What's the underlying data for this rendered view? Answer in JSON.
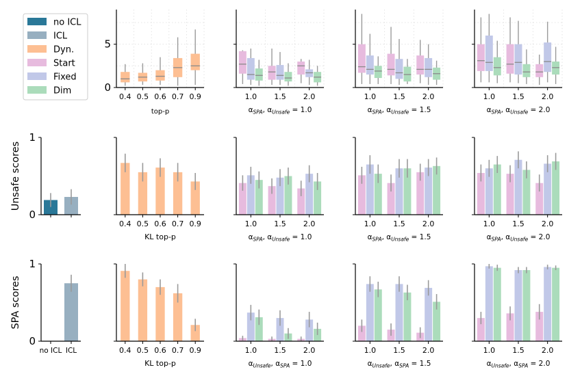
{
  "colors": {
    "noicl": "#2a7898",
    "icl": "#97afc0",
    "dyn": "#fdbf93",
    "start": "#e7bbde",
    "fixed": "#c1c8e8",
    "dim": "#abdcbb",
    "whisker": "#9a9a9a",
    "median": "#8a8a8a",
    "axis": "#000000",
    "grid": "#dddddd"
  },
  "legend": [
    {
      "label": "no ICL",
      "color": "#2a7898"
    },
    {
      "label": "ICL",
      "color": "#97afc0"
    },
    {
      "label": "Dyn.",
      "color": "#fdbf93"
    },
    {
      "label": "Start",
      "color": "#e7bbde"
    },
    {
      "label": "Fixed",
      "color": "#c1c8e8"
    },
    {
      "label": "Dim",
      "color": "#abdcbb"
    }
  ],
  "row_labels": [
    "Unsafe scores",
    "SPA scores"
  ],
  "chart_data": [
    {
      "id": "top-p-box",
      "type": "box",
      "ylim": [
        0,
        9
      ],
      "yticks": [
        "0",
        "5"
      ],
      "ytick_values": [
        0,
        5
      ],
      "xlabel": "top-p",
      "categories": [
        "0.4",
        "0.5",
        "0.6",
        "0.7",
        "0.9"
      ],
      "series": [
        {
          "name": "Dyn.",
          "color": "#fdbf93",
          "boxes": [
            {
              "q1": 0.6,
              "median": 1.0,
              "q3": 1.8,
              "lo": 0.2,
              "hi": 2.7
            },
            {
              "q1": 0.7,
              "median": 1.2,
              "q3": 1.7,
              "lo": 0.3,
              "hi": 2.8
            },
            {
              "q1": 0.8,
              "median": 1.3,
              "q3": 2.0,
              "lo": 0.3,
              "hi": 3.5
            },
            {
              "q1": 1.2,
              "median": 2.3,
              "q3": 3.4,
              "lo": 0.2,
              "hi": 5.8
            },
            {
              "q1": 2.0,
              "median": 2.5,
              "q3": 3.9,
              "lo": 0.3,
              "hi": 6.7
            }
          ]
        }
      ]
    },
    {
      "id": "box-unsafe-1.0",
      "type": "box",
      "ylim": [
        0,
        9
      ],
      "xlabel": "αSPA, αUnsafe = 1.0",
      "categories": [
        "1.0",
        "1.5",
        "2.0"
      ],
      "series": [
        {
          "name": "Start",
          "color": "#e7bbde",
          "boxes": [
            {
              "q1": 1.6,
              "median": 2.7,
              "q3": 4.2,
              "lo": 0.4,
              "hi": 4.3
            },
            {
              "q1": 0.9,
              "median": 1.8,
              "q3": 2.5,
              "lo": 0.3,
              "hi": 4.5
            },
            {
              "q1": 1.5,
              "median": 2.5,
              "q3": 3.0,
              "lo": 0.5,
              "hi": 3.3
            }
          ]
        },
        {
          "name": "Fixed",
          "color": "#c1c8e8",
          "boxes": [
            {
              "q1": 0.9,
              "median": 1.5,
              "q3": 3.4,
              "lo": 0.3,
              "hi": 4.5
            },
            {
              "q1": 0.9,
              "median": 1.4,
              "q3": 2.6,
              "lo": 0.3,
              "hi": 4.1
            },
            {
              "q1": 1.2,
              "median": 1.7,
              "q3": 2.1,
              "lo": 0.3,
              "hi": 3.2
            }
          ]
        },
        {
          "name": "Dim",
          "color": "#abdcbb",
          "boxes": [
            {
              "q1": 0.8,
              "median": 1.4,
              "q3": 2.2,
              "lo": 0.2,
              "hi": 3.2
            },
            {
              "q1": 0.7,
              "median": 1.1,
              "q3": 1.8,
              "lo": 0.2,
              "hi": 2.8
            },
            {
              "q1": 0.6,
              "median": 1.2,
              "q3": 1.8,
              "lo": 0.2,
              "hi": 2.5
            }
          ]
        }
      ]
    },
    {
      "id": "box-unsafe-1.5",
      "type": "box",
      "ylim": [
        0,
        9
      ],
      "xlabel": "αSPA, αUnsafe = 1.5",
      "categories": [
        "1.0",
        "1.5",
        "2.0"
      ],
      "series": [
        {
          "name": "Start",
          "color": "#e7bbde",
          "boxes": [
            {
              "q1": 1.7,
              "median": 2.4,
              "q3": 5.0,
              "lo": 0.4,
              "hi": 8.5
            },
            {
              "q1": 1.4,
              "median": 2.1,
              "q3": 3.9,
              "lo": 0.4,
              "hi": 7.0
            },
            {
              "q1": 1.5,
              "median": 2.1,
              "q3": 3.7,
              "lo": 0.5,
              "hi": 5.5
            }
          ]
        },
        {
          "name": "Fixed",
          "color": "#c1c8e8",
          "boxes": [
            {
              "q1": 1.5,
              "median": 2.1,
              "q3": 3.7,
              "lo": 0.4,
              "hi": 6.2
            },
            {
              "q1": 1.0,
              "median": 1.7,
              "q3": 3.3,
              "lo": 0.3,
              "hi": 5.6
            },
            {
              "q1": 1.2,
              "median": 2.1,
              "q3": 3.4,
              "lo": 0.3,
              "hi": 5.0
            }
          ]
        },
        {
          "name": "Dim",
          "color": "#abdcbb",
          "boxes": [
            {
              "q1": 1.1,
              "median": 1.9,
              "q3": 2.5,
              "lo": 0.4,
              "hi": 3.6
            },
            {
              "q1": 0.7,
              "median": 1.5,
              "q3": 2.4,
              "lo": 0.4,
              "hi": 3.3
            },
            {
              "q1": 0.9,
              "median": 1.6,
              "q3": 2.3,
              "lo": 0.3,
              "hi": 3.1
            }
          ]
        }
      ]
    },
    {
      "id": "box-unsafe-2.0",
      "type": "box",
      "ylim": [
        0,
        9
      ],
      "xlabel": "αSPA, αUnsafe = 2.0",
      "categories": [
        "1.0",
        "1.5",
        "2.0"
      ],
      "series": [
        {
          "name": "Start",
          "color": "#e7bbde",
          "boxes": [
            {
              "q1": 1.9,
              "median": 3.1,
              "q3": 5.0,
              "lo": 0.6,
              "hi": 8.1
            },
            {
              "q1": 1.6,
              "median": 2.7,
              "q3": 5.0,
              "lo": 0.6,
              "hi": 8.1
            },
            {
              "q1": 1.2,
              "median": 1.8,
              "q3": 2.7,
              "lo": 0.3,
              "hi": 3.8
            }
          ]
        },
        {
          "name": "Fixed",
          "color": "#c1c8e8",
          "boxes": [
            {
              "q1": 1.9,
              "median": 2.9,
              "q3": 6.0,
              "lo": 0.6,
              "hi": 8.5
            },
            {
              "q1": 1.5,
              "median": 2.9,
              "q3": 5.0,
              "lo": 0.5,
              "hi": 7.7
            },
            {
              "q1": 1.8,
              "median": 3.0,
              "q3": 5.2,
              "lo": 0.6,
              "hi": 7.6
            }
          ]
        },
        {
          "name": "Dim",
          "color": "#abdcbb",
          "boxes": [
            {
              "q1": 1.4,
              "median": 2.3,
              "q3": 3.5,
              "lo": 0.5,
              "hi": 5.4
            },
            {
              "q1": 1.2,
              "median": 1.8,
              "q3": 2.7,
              "lo": 0.4,
              "hi": 4.4
            },
            {
              "q1": 1.5,
              "median": 2.3,
              "q3": 3.0,
              "lo": 0.4,
              "hi": 4.7
            }
          ]
        }
      ]
    },
    {
      "id": "unsafe-icl",
      "type": "bar",
      "ylim": [
        0,
        1
      ],
      "yticks": [
        "0",
        "1"
      ],
      "ytick_values": [
        0,
        1
      ],
      "categories": [
        "",
        ""
      ],
      "series": [
        {
          "name": "no ICL",
          "color": "#2a7898",
          "values": [
            0.19,
            null
          ],
          "err": [
            0.09,
            null
          ]
        },
        {
          "name": "ICL",
          "color": "#97afc0",
          "values": [
            null,
            0.23
          ],
          "err": [
            null,
            0.1
          ]
        }
      ]
    },
    {
      "id": "unsafe-kl-top-p",
      "type": "bar",
      "ylim": [
        0,
        1
      ],
      "xlabel": "KL top-p",
      "categories": [
        "0.4",
        "0.5",
        "0.6",
        "0.7",
        "0.9"
      ],
      "series": [
        {
          "name": "Dyn.",
          "color": "#fdbf93",
          "values": [
            0.67,
            0.55,
            0.61,
            0.55,
            0.43
          ],
          "err": [
            0.12,
            0.12,
            0.12,
            0.12,
            0.11
          ]
        }
      ]
    },
    {
      "id": "unsafe-1.0",
      "type": "bar",
      "ylim": [
        0,
        1
      ],
      "xlabel": "αSPA, αUnsafe = 1.0",
      "categories": [
        "1.0",
        "1.5",
        "2.0"
      ],
      "series": [
        {
          "name": "Start",
          "color": "#e7bbde",
          "values": [
            0.41,
            0.37,
            0.34
          ],
          "err": [
            0.1,
            0.1,
            0.1
          ]
        },
        {
          "name": "Fixed",
          "color": "#c1c8e8",
          "values": [
            0.51,
            0.48,
            0.53
          ],
          "err": [
            0.11,
            0.11,
            0.11
          ]
        },
        {
          "name": "Dim",
          "color": "#abdcbb",
          "values": [
            0.45,
            0.5,
            0.43
          ],
          "err": [
            0.11,
            0.11,
            0.11
          ]
        }
      ]
    },
    {
      "id": "unsafe-1.5",
      "type": "bar",
      "ylim": [
        0,
        1
      ],
      "xlabel": "αSPA, αUnsafe = 1.5",
      "categories": [
        "1.0",
        "1.5",
        "2.0"
      ],
      "series": [
        {
          "name": "Start",
          "color": "#e7bbde",
          "values": [
            0.51,
            0.41,
            0.55
          ],
          "err": [
            0.11,
            0.11,
            0.11
          ]
        },
        {
          "name": "Fixed",
          "color": "#c1c8e8",
          "values": [
            0.65,
            0.6,
            0.61
          ],
          "err": [
            0.12,
            0.12,
            0.11
          ]
        },
        {
          "name": "Dim",
          "color": "#abdcbb",
          "values": [
            0.53,
            0.6,
            0.63
          ],
          "err": [
            0.12,
            0.12,
            0.11
          ]
        }
      ]
    },
    {
      "id": "unsafe-2.0",
      "type": "bar",
      "ylim": [
        0,
        1
      ],
      "xlabel": "αSPA, αUnsafe = 2.0",
      "categories": [
        "1.0",
        "1.5",
        "2.0"
      ],
      "series": [
        {
          "name": "Start",
          "color": "#e7bbde",
          "values": [
            0.54,
            0.53,
            0.41
          ],
          "err": [
            0.11,
            0.11,
            0.11
          ]
        },
        {
          "name": "Fixed",
          "color": "#c1c8e8",
          "values": [
            0.6,
            0.71,
            0.66
          ],
          "err": [
            0.11,
            0.11,
            0.11
          ]
        },
        {
          "name": "Dim",
          "color": "#abdcbb",
          "values": [
            0.65,
            0.58,
            0.69
          ],
          "err": [
            0.11,
            0.11,
            0.11
          ]
        }
      ]
    },
    {
      "id": "spa-icl",
      "type": "bar",
      "ylim": [
        0,
        1
      ],
      "yticks": [
        "0",
        "1"
      ],
      "ytick_values": [
        0,
        1
      ],
      "categories": [
        "no ICL",
        "ICL"
      ],
      "series": [
        {
          "name": "no ICL",
          "color": "#2a7898",
          "values": [
            0.0,
            null
          ],
          "err": [
            0.0,
            null
          ]
        },
        {
          "name": "ICL",
          "color": "#97afc0",
          "values": [
            null,
            0.75
          ],
          "err": [
            null,
            0.11
          ]
        }
      ]
    },
    {
      "id": "spa-kl-top-p",
      "type": "bar",
      "ylim": [
        0,
        1
      ],
      "xlabel": "KL top-p",
      "categories": [
        "0.4",
        "0.5",
        "0.6",
        "0.7",
        "0.9"
      ],
      "series": [
        {
          "name": "Dyn.",
          "color": "#fdbf93",
          "values": [
            0.91,
            0.8,
            0.7,
            0.62,
            0.21
          ],
          "err": [
            0.09,
            0.09,
            0.1,
            0.12,
            0.08
          ]
        }
      ]
    },
    {
      "id": "spa-1.0",
      "type": "bar",
      "ylim": [
        0,
        1
      ],
      "xlabel": "αUnsafe, αSPA = 1.0",
      "categories": [
        "1.0",
        "1.5",
        "2.0"
      ],
      "series": [
        {
          "name": "Start",
          "color": "#e7bbde",
          "values": [
            0.04,
            0.03,
            0.03
          ],
          "err": [
            0.03,
            0.03,
            0.03
          ]
        },
        {
          "name": "Fixed",
          "color": "#c1c8e8",
          "values": [
            0.37,
            0.3,
            0.28
          ],
          "err": [
            0.1,
            0.1,
            0.1
          ]
        },
        {
          "name": "Dim",
          "color": "#abdcbb",
          "values": [
            0.31,
            0.1,
            0.16
          ],
          "err": [
            0.1,
            0.07,
            0.08
          ]
        }
      ]
    },
    {
      "id": "spa-1.5",
      "type": "bar",
      "ylim": [
        0,
        1
      ],
      "xlabel": "αUnsafe, αSPA = 1.5",
      "categories": [
        "1.0",
        "1.5",
        "2.0"
      ],
      "series": [
        {
          "name": "Start",
          "color": "#e7bbde",
          "values": [
            0.2,
            0.15,
            0.11
          ],
          "err": [
            0.08,
            0.08,
            0.07
          ]
        },
        {
          "name": "Fixed",
          "color": "#c1c8e8",
          "values": [
            0.74,
            0.74,
            0.69
          ],
          "err": [
            0.1,
            0.1,
            0.1
          ]
        },
        {
          "name": "Dim",
          "color": "#abdcbb",
          "values": [
            0.67,
            0.63,
            0.51
          ],
          "err": [
            0.1,
            0.1,
            0.1
          ]
        }
      ]
    },
    {
      "id": "spa-2.0",
      "type": "bar",
      "ylim": [
        0,
        1
      ],
      "xlabel": "αUnsafe, αSPA = 2.0",
      "categories": [
        "1.0",
        "1.5",
        "2.0"
      ],
      "series": [
        {
          "name": "Start",
          "color": "#e7bbde",
          "values": [
            0.3,
            0.36,
            0.38
          ],
          "err": [
            0.08,
            0.09,
            0.1
          ]
        },
        {
          "name": "Fixed",
          "color": "#c1c8e8",
          "values": [
            0.97,
            0.92,
            0.96
          ],
          "err": [
            0.03,
            0.04,
            0.03
          ]
        },
        {
          "name": "Dim",
          "color": "#abdcbb",
          "values": [
            0.95,
            0.92,
            0.95
          ],
          "err": [
            0.04,
            0.04,
            0.03
          ]
        }
      ]
    }
  ]
}
